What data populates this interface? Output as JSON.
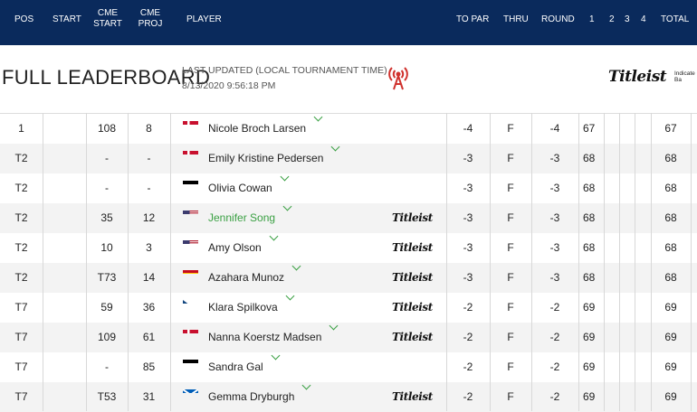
{
  "header": {
    "pos": "POS",
    "start": "START",
    "cme_start": "CME START",
    "cme_proj": "CME PROJ",
    "player": "PLAYER",
    "to_par": "TO PAR",
    "thru": "THRU",
    "round": "ROUND",
    "r1": "1",
    "r2": "2",
    "r3": "3",
    "r4": "4",
    "total": "TOTAL"
  },
  "leaderboard": {
    "title": "FULL LEADERBOARD",
    "last_updated_label": "LAST UPDATED (LOCAL TOURNAMENT TIME)",
    "last_updated_time": "8/13/2020 9:56:18 PM",
    "sponsor_logo": "Titleist",
    "sponsor_note": "Indicate Golf Ba"
  },
  "colors": {
    "header_bg": "#0a2a5c",
    "accent_red": "#d0312d",
    "highlight_green": "#3aa043"
  },
  "rows": [
    {
      "pos": "1",
      "cme_start": "108",
      "cme_proj": "8",
      "flag": "denmark",
      "player": "Nicole Broch Larsen",
      "titleist": "",
      "to_par": "-4",
      "thru": "F",
      "round": "-4",
      "r1": "67",
      "total": "67"
    },
    {
      "pos": "T2",
      "cme_start": "-",
      "cme_proj": "-",
      "flag": "denmark",
      "player": "Emily Kristine Pedersen",
      "titleist": "",
      "to_par": "-3",
      "thru": "F",
      "round": "-3",
      "r1": "68",
      "total": "68"
    },
    {
      "pos": "T2",
      "cme_start": "-",
      "cme_proj": "-",
      "flag": "germany",
      "player": "Olivia Cowan",
      "titleist": "",
      "to_par": "-3",
      "thru": "F",
      "round": "-3",
      "r1": "68",
      "total": "68"
    },
    {
      "pos": "T2",
      "cme_start": "35",
      "cme_proj": "12",
      "flag": "usa",
      "player": "Jennifer Song",
      "titleist": "Titleist",
      "to_par": "-3",
      "thru": "F",
      "round": "-3",
      "r1": "68",
      "total": "68",
      "highlight": true
    },
    {
      "pos": "T2",
      "cme_start": "10",
      "cme_proj": "3",
      "flag": "usa",
      "player": "Amy Olson",
      "titleist": "Titleist",
      "to_par": "-3",
      "thru": "F",
      "round": "-3",
      "r1": "68",
      "total": "68"
    },
    {
      "pos": "T2",
      "cme_start": "T73",
      "cme_proj": "14",
      "flag": "spain",
      "player": "Azahara Munoz",
      "titleist": "Titleist",
      "to_par": "-3",
      "thru": "F",
      "round": "-3",
      "r1": "68",
      "total": "68"
    },
    {
      "pos": "T7",
      "cme_start": "59",
      "cme_proj": "36",
      "flag": "czech",
      "player": "Klara Spilkova",
      "titleist": "Titleist",
      "to_par": "-2",
      "thru": "F",
      "round": "-2",
      "r1": "69",
      "total": "69"
    },
    {
      "pos": "T7",
      "cme_start": "109",
      "cme_proj": "61",
      "flag": "denmark",
      "player": "Nanna Koerstz Madsen",
      "titleist": "Titleist",
      "to_par": "-2",
      "thru": "F",
      "round": "-2",
      "r1": "69",
      "total": "69"
    },
    {
      "pos": "T7",
      "cme_start": "-",
      "cme_proj": "85",
      "flag": "germany",
      "player": "Sandra Gal",
      "titleist": "",
      "to_par": "-2",
      "thru": "F",
      "round": "-2",
      "r1": "69",
      "total": "69"
    },
    {
      "pos": "T7",
      "cme_start": "T53",
      "cme_proj": "31",
      "flag": "scotland",
      "player": "Gemma Dryburgh",
      "titleist": "Titleist",
      "to_par": "-2",
      "thru": "F",
      "round": "-2",
      "r1": "69",
      "total": "69"
    }
  ]
}
